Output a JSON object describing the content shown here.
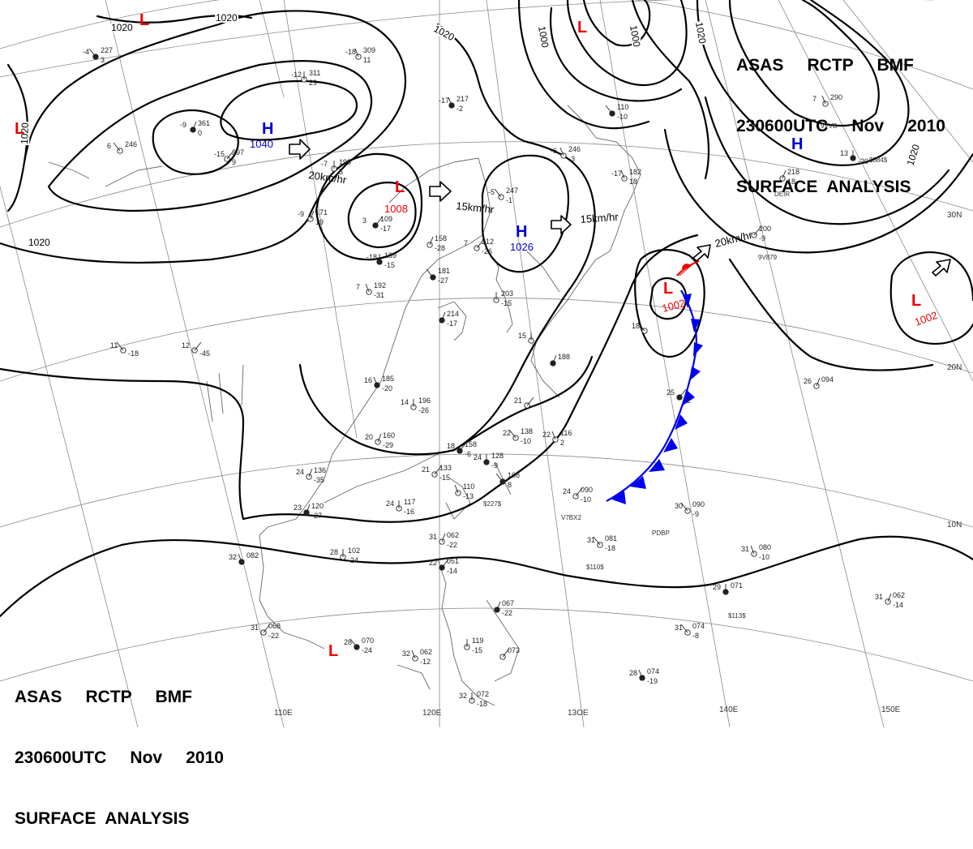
{
  "header": {
    "line1": "ASAS     RCTP     BMF",
    "line2": "230600UTC     Nov     2010",
    "line3": "SURFACE  ANALYSIS"
  },
  "colors": {
    "isobar": "#000000",
    "grid": "#888888",
    "coast": "#555555",
    "low": "#ee0000",
    "high": "#0000cc",
    "cold_front": "#0000ee",
    "warm_front": "#ee0000"
  },
  "isobar_labels": [
    {
      "id": "iso-1020-a",
      "text": "1020"
    },
    {
      "id": "iso-1020-b",
      "text": "1020"
    },
    {
      "id": "iso-1020-c",
      "text": "1020"
    },
    {
      "id": "iso-1020-d",
      "text": "1020"
    },
    {
      "id": "iso-1020-e",
      "text": "1020"
    },
    {
      "id": "iso-1020-f",
      "text": "1020"
    },
    {
      "id": "iso-1020-g",
      "text": "1020"
    },
    {
      "id": "iso-1000-a",
      "text": "1000"
    },
    {
      "id": "iso-1000-b",
      "text": "1000"
    }
  ],
  "pressure_systems": [
    {
      "id": "low-topleft",
      "type": "L",
      "pressure": ""
    },
    {
      "id": "low-left",
      "type": "L",
      "pressure": ""
    },
    {
      "id": "high-1040",
      "type": "H",
      "pressure": "1040"
    },
    {
      "id": "low-1008",
      "type": "L",
      "pressure": "1008"
    },
    {
      "id": "high-1026",
      "type": "H",
      "pressure": "1026"
    },
    {
      "id": "low-topcenter",
      "type": "L",
      "pressure": ""
    },
    {
      "id": "high-east",
      "type": "H",
      "pressure": ""
    },
    {
      "id": "low-1002-a",
      "type": "L",
      "pressure": "1002"
    },
    {
      "id": "low-1002-b",
      "type": "L",
      "pressure": "1002"
    },
    {
      "id": "low-south",
      "type": "L",
      "pressure": ""
    }
  ],
  "motions": [
    {
      "id": "motion-20-west",
      "text": "20km/hr"
    },
    {
      "id": "motion-15-a",
      "text": "15km/hr"
    },
    {
      "id": "motion-15-b",
      "text": "15km/hr"
    },
    {
      "id": "motion-20-east",
      "text": "20km/hr"
    }
  ],
  "longitude_labels": [
    "110E",
    "120E",
    "13OE",
    "140E",
    "150E"
  ],
  "latitude_labels": [
    "30N",
    "20N",
    "10N"
  ],
  "stations": [
    {
      "t": "-4",
      "p": "227",
      "d": "3"
    },
    {
      "t": "-18",
      "p": "309",
      "d": "11"
    },
    {
      "t": "-12",
      "p": "311",
      "d": "29"
    },
    {
      "t": "-9",
      "p": "361",
      "d": "0"
    },
    {
      "t": "-15",
      "p": "297",
      "d": "9"
    },
    {
      "t": "6",
      "p": "246",
      "d": ""
    },
    {
      "t": "-17",
      "p": "217",
      "d": "-2"
    },
    {
      "t": "-7",
      "p": "198",
      "d": "5"
    },
    {
      "t": "-9",
      "p": "171",
      "d": "19"
    },
    {
      "t": "3",
      "p": "109",
      "d": "-17"
    },
    {
      "t": "-5",
      "p": "247",
      "d": "-1"
    },
    {
      "t": "-17",
      "p": "182",
      "d": "18"
    },
    {
      "t": "-18",
      "p": "189",
      "d": "-15"
    },
    {
      "t": "",
      "p": "158",
      "d": "-28"
    },
    {
      "t": "7",
      "p": "212",
      "d": "-26"
    },
    {
      "t": "",
      "p": "181",
      "d": "-27"
    },
    {
      "t": "7",
      "p": "192",
      "d": "-31"
    },
    {
      "t": "",
      "p": "203",
      "d": "-15"
    },
    {
      "t": "",
      "p": "214",
      "d": "-17"
    },
    {
      "t": "12",
      "p": "",
      "d": "-45"
    },
    {
      "t": "11",
      "p": "",
      "d": "-18"
    },
    {
      "t": "16",
      "p": "185",
      "d": "-20"
    },
    {
      "t": "14",
      "p": "196",
      "d": "-26"
    },
    {
      "t": "20",
      "p": "160",
      "d": "-29"
    },
    {
      "t": "18",
      "p": "158",
      "d": "-6"
    },
    {
      "t": "22",
      "p": "138",
      "d": "-10"
    },
    {
      "t": "22",
      "p": "116",
      "d": "2"
    },
    {
      "t": "24",
      "p": "128",
      "d": "-9"
    },
    {
      "t": "24",
      "p": "136",
      "d": "-35"
    },
    {
      "t": "21",
      "p": "133",
      "d": "-15"
    },
    {
      "t": "",
      "p": "108",
      "d": "8"
    },
    {
      "t": "",
      "p": "110",
      "d": "-13"
    },
    {
      "t": "24",
      "p": "117",
      "d": "-16"
    },
    {
      "t": "23",
      "p": "120",
      "d": "-27"
    },
    {
      "t": "24",
      "p": "090",
      "d": "-10"
    },
    {
      "t": "30",
      "p": "090",
      "d": "-9"
    },
    {
      "t": "32",
      "p": "082",
      "d": ""
    },
    {
      "t": "28",
      "p": "102",
      "d": "-24"
    },
    {
      "t": "31",
      "p": "062",
      "d": "-22"
    },
    {
      "t": "22",
      "p": "051",
      "d": "-14"
    },
    {
      "t": "31",
      "p": "081",
      "d": "-18"
    },
    {
      "t": "31",
      "p": "080",
      "d": "-10"
    },
    {
      "t": "29",
      "p": "071",
      "d": ""
    },
    {
      "t": "31",
      "p": "062",
      "d": "-14"
    },
    {
      "t": "31",
      "p": "068",
      "d": "-22"
    },
    {
      "t": "28",
      "p": "070",
      "d": "-24"
    },
    {
      "t": "32",
      "p": "062",
      "d": "-12"
    },
    {
      "t": "",
      "p": "119",
      "d": "-15"
    },
    {
      "t": "",
      "p": "067",
      "d": "-22"
    },
    {
      "t": "",
      "p": "073",
      "d": ""
    },
    {
      "t": "31",
      "p": "074",
      "d": "-8"
    },
    {
      "t": "28",
      "p": "074",
      "d": "-19"
    },
    {
      "t": "32",
      "p": "072",
      "d": "-18"
    },
    {
      "t": "26",
      "p": "094",
      "d": ""
    },
    {
      "t": "25",
      "p": "",
      "d": "-2"
    },
    {
      "t": "18",
      "p": "",
      "d": ""
    },
    {
      "t": "7",
      "p": "290",
      "d": ""
    },
    {
      "t": "13",
      "p": "",
      "d": "-20"
    },
    {
      "t": "",
      "p": "218",
      "d": "18"
    },
    {
      "t": "",
      "p": "200",
      "d": "-9"
    },
    {
      "t": "",
      "p": "110",
      "d": "-10"
    },
    {
      "t": "-6",
      "p": "246",
      "d": "-3"
    },
    {
      "t": "15",
      "p": "",
      "d": ""
    },
    {
      "t": "",
      "p": "188",
      "d": ""
    },
    {
      "t": "21",
      "p": "",
      "d": ""
    }
  ],
  "station_ids": [
    "V7BX2",
    "PDBP",
    "9VVD",
    "DEIR",
    "9V879",
    "$227$",
    "$110$",
    "$113$",
    "$384$"
  ]
}
